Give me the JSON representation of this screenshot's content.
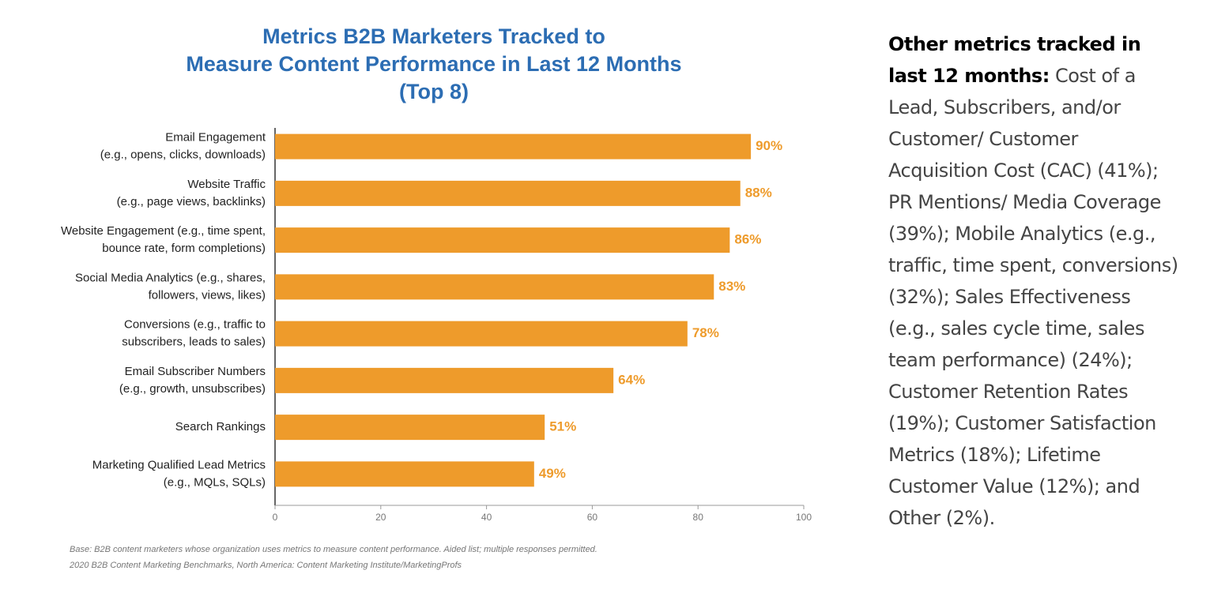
{
  "chart_data": {
    "type": "bar",
    "orientation": "horizontal",
    "title": "Metrics B2B Marketers Tracked to\nMeasure Content Performance in Last 12 Months\n(Top 8)",
    "categories": [
      "Email Engagement\n(e.g., opens, clicks, downloads)",
      "Website Traffic\n(e.g., page views, backlinks)",
      "Website Engagement (e.g., time spent,\nbounce rate, form completions)",
      "Social Media Analytics (e.g., shares,\nfollowers, views, likes)",
      "Conversions (e.g., traffic to\nsubscribers, leads to sales)",
      "Email Subscriber Numbers\n(e.g., growth, unsubscribes)",
      "Search Rankings",
      "Marketing Qualified Lead Metrics\n(e.g., MQLs, SQLs)"
    ],
    "values": [
      90,
      88,
      86,
      83,
      78,
      64,
      51,
      49
    ],
    "value_labels": [
      "90%",
      "88%",
      "86%",
      "83%",
      "78%",
      "64%",
      "51%",
      "49%"
    ],
    "color": "#ee9b2b",
    "xlim": [
      0,
      100
    ],
    "xticks": [
      0,
      20,
      40,
      60,
      80,
      100
    ],
    "grid": false,
    "footnotes": [
      "Base: B2B content marketers whose organization uses metrics to measure content performance. Aided list; multiple responses permitted.",
      "2020 B2B Content Marketing Benchmarks, North America: Content Marketing Institute/MarketingProfs"
    ]
  },
  "side_note": {
    "heading": "Other metrics tracked in last 12 months:",
    "text": "Cost of a Lead, Subscribers, and/or Customer/ Customer Acquisition Cost (CAC) (41%); PR Mentions/ Media Coverage (39%); Mobile Analytics (e.g., traffic, time spent, conversions) (32%); Sales Effectiveness (e.g., sales cycle time, sales team performance) (24%); Customer Retention Rates (19%); Customer Satisfaction Metrics (18%); Lifetime Customer Value (12%); and Other (2%)."
  }
}
